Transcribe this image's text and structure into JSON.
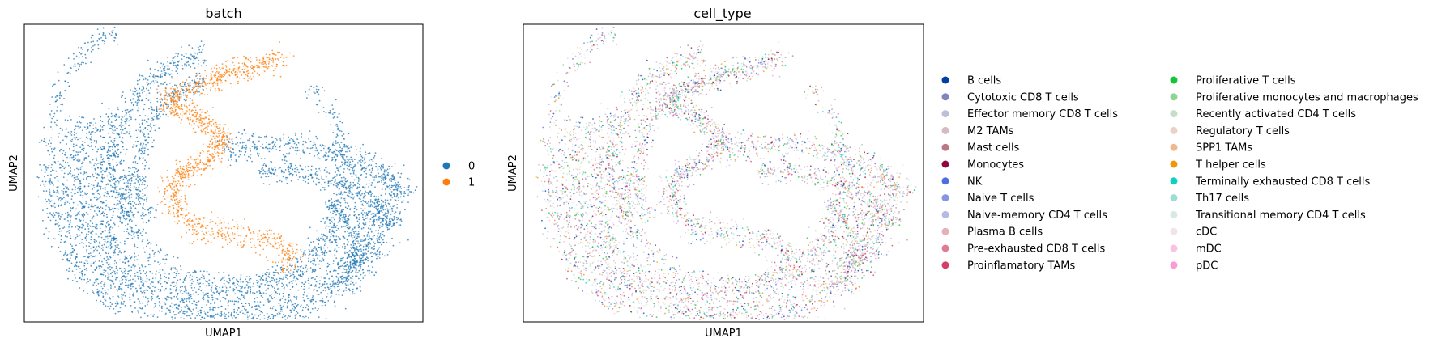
{
  "chart_data": [
    {
      "type": "scatter",
      "title": "batch",
      "xlabel": "UMAP1",
      "ylabel": "UMAP2",
      "grid": false,
      "legend_placement": "right",
      "series": [
        {
          "name": "0",
          "color": "#1f77b4"
        },
        {
          "name": "1",
          "color": "#ff7f0e"
        }
      ]
    },
    {
      "type": "scatter",
      "title": "cell_type",
      "xlabel": "UMAP1",
      "ylabel": "UMAP2",
      "grid": false,
      "legend_placement": "right",
      "series": [
        {
          "name": "B cells",
          "color": "#023fa5"
        },
        {
          "name": "Cytotoxic CD8 T cells",
          "color": "#7d87b9"
        },
        {
          "name": "Effector memory CD8 T cells",
          "color": "#bec1d4"
        },
        {
          "name": "M2 TAMs",
          "color": "#d6bcc0"
        },
        {
          "name": "Mast cells",
          "color": "#bb7784"
        },
        {
          "name": "Monocytes",
          "color": "#8e063b"
        },
        {
          "name": "NK",
          "color": "#4a6fe3"
        },
        {
          "name": "Naive T cells",
          "color": "#8595e1"
        },
        {
          "name": "Naive-memory CD4 T cells",
          "color": "#b5bbe3"
        },
        {
          "name": "Plasma B cells",
          "color": "#e6afb9"
        },
        {
          "name": "Pre-exhausted CD8 T cells",
          "color": "#e07b91"
        },
        {
          "name": "Proinflamatory TAMs",
          "color": "#d33f6a"
        },
        {
          "name": "Proliferative T cells",
          "color": "#11c638"
        },
        {
          "name": "Proliferative monocytes and macrophages",
          "color": "#8dd593"
        },
        {
          "name": "Recently activated CD4 T cells",
          "color": "#c6dec7"
        },
        {
          "name": "Regulatory T cells",
          "color": "#ead3c6"
        },
        {
          "name": "SPP1 TAMs",
          "color": "#f0b98d"
        },
        {
          "name": "T helper cells",
          "color": "#ef9708"
        },
        {
          "name": "Terminally exhausted CD8 T cells",
          "color": "#0fcfc0"
        },
        {
          "name": "Th17 cells",
          "color": "#9cded6"
        },
        {
          "name": "Transitional memory CD4 T cells",
          "color": "#d5eae7"
        },
        {
          "name": "cDC",
          "color": "#f3e1eb"
        },
        {
          "name": "mDC",
          "color": "#f6c4e1"
        },
        {
          "name": "pDC",
          "color": "#f79cd4"
        }
      ]
    }
  ]
}
